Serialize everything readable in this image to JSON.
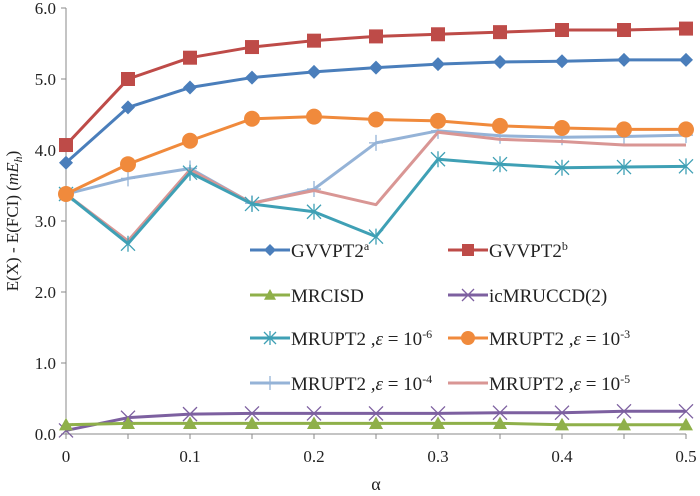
{
  "chart_data": {
    "type": "line",
    "xlabel": "α",
    "ylabel": "E(X) - E(FCI) (",
    "yunit": {
      "base": "mE",
      "sub": "h",
      "close": ")"
    },
    "xlim": [
      0,
      0.5
    ],
    "ylim": [
      0,
      6.0
    ],
    "x": [
      0,
      0.05,
      0.1,
      0.15,
      0.2,
      0.25,
      0.3,
      0.35,
      0.4,
      0.45,
      0.5
    ],
    "xticks": [
      0,
      0.1,
      0.2,
      0.3,
      0.4,
      0.5
    ],
    "xtick_labels": [
      "0",
      "0.1",
      "0.2",
      "0.3",
      "0.4",
      "0.5"
    ],
    "yticks": [
      0,
      1,
      2,
      3,
      4,
      5,
      6
    ],
    "ytick_labels": [
      "0.0",
      "1.0",
      "2.0",
      "3.0",
      "4.0",
      "5.0",
      "6.0"
    ],
    "grid": false,
    "legend_position": "center-right (inside plot)",
    "series": [
      {
        "name": "GVVPT2",
        "sup": "a",
        "color": "#4a7ebb",
        "marker": "diamond",
        "values": [
          3.82,
          4.6,
          4.88,
          5.02,
          5.1,
          5.16,
          5.21,
          5.24,
          5.25,
          5.27,
          5.27
        ]
      },
      {
        "name": "GVVPT2",
        "sup": "b",
        "color": "#be4b48",
        "marker": "square",
        "values": [
          4.07,
          5.0,
          5.3,
          5.45,
          5.54,
          5.6,
          5.63,
          5.66,
          5.69,
          5.69,
          5.71
        ]
      },
      {
        "name": "MRCISD",
        "sup": "",
        "color": "#8fb04a",
        "marker": "triangle",
        "values": [
          0.13,
          0.15,
          0.15,
          0.15,
          0.15,
          0.15,
          0.15,
          0.15,
          0.13,
          0.13,
          0.13
        ]
      },
      {
        "name": "icMRUCCD(2)",
        "sup": "",
        "color": "#7d60a0",
        "marker": "x",
        "values": [
          0.05,
          0.23,
          0.28,
          0.29,
          0.29,
          0.29,
          0.29,
          0.3,
          0.3,
          0.32,
          0.32
        ]
      },
      {
        "name": "MRUPT2 ,ε = 10",
        "sup": "-6",
        "color": "#3fa0b5",
        "marker": "star",
        "values": [
          3.38,
          2.68,
          3.68,
          3.24,
          3.13,
          2.78,
          3.87,
          3.8,
          3.75,
          3.76,
          3.77
        ]
      },
      {
        "name": "MRUPT2 ,ε = 10",
        "sup": "-3",
        "color": "#f08a3c",
        "marker": "circle",
        "values": [
          3.38,
          3.8,
          4.13,
          4.44,
          4.47,
          4.43,
          4.41,
          4.34,
          4.31,
          4.29,
          4.29
        ]
      },
      {
        "name": "MRUPT2 ,ε = 10",
        "sup": "-4",
        "color": "#95b3d7",
        "marker": "plus",
        "values": [
          3.38,
          3.6,
          3.74,
          3.25,
          3.45,
          4.1,
          4.27,
          4.2,
          4.18,
          4.19,
          4.21
        ]
      },
      {
        "name": "MRUPT2 ,ε = 10",
        "sup": "-5",
        "color": "#d99694",
        "marker": "none",
        "values": [
          3.38,
          2.72,
          3.72,
          3.25,
          3.43,
          3.23,
          4.25,
          4.15,
          4.12,
          4.07,
          4.07
        ]
      }
    ]
  }
}
